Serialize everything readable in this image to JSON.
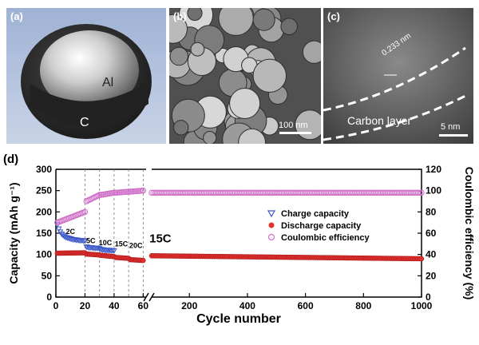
{
  "panels": {
    "a": {
      "label": "(a)",
      "core_label": "Al",
      "shell_label": "C"
    },
    "b": {
      "label": "(b)",
      "scale_text": "100 nm"
    },
    "c": {
      "label": "(c)",
      "lattice_text": "0.233 nm",
      "layer_text": "Carbon layer",
      "scale_text": "5 nm"
    },
    "d": {
      "label": "(d)"
    }
  },
  "chart_data": {
    "type": "scatter",
    "xlabel": "Cycle number",
    "ylabel": "Capacity (mAh g⁻¹)",
    "y2label": "Coulombic efficiency (%)",
    "xlim": [
      0,
      1000
    ],
    "ylim": [
      0,
      300
    ],
    "y2lim": [
      0,
      120
    ],
    "x_break": {
      "from": 62,
      "to": 70
    },
    "x_ticks": [
      "0",
      "20",
      "40",
      "60",
      "200",
      "400",
      "600",
      "800",
      "1000"
    ],
    "y_ticks": [
      "0",
      "50",
      "100",
      "150",
      "200",
      "250",
      "300"
    ],
    "y2_ticks": [
      "0",
      "20",
      "40",
      "60",
      "80",
      "100",
      "120"
    ],
    "rate_labels": [
      {
        "text": "2C",
        "x": 10,
        "y": 148
      },
      {
        "text": "5C",
        "x": 24,
        "y": 127
      },
      {
        "text": "10C",
        "x": 34,
        "y": 122
      },
      {
        "text": "15C",
        "x": 45,
        "y": 119
      },
      {
        "text": "20C",
        "x": 55,
        "y": 115
      }
    ],
    "big_label": {
      "text": "15C",
      "x": 100,
      "y": 128
    },
    "rate_boundaries": [
      20,
      30,
      40,
      50,
      60
    ],
    "series": [
      {
        "name": "Charge capacity",
        "marker": "triangle-down",
        "color": "#3a56c8",
        "axis": "left",
        "points": [
          [
            1,
            170
          ],
          [
            2,
            160
          ],
          [
            3,
            153
          ],
          [
            4,
            148
          ],
          [
            5,
            145
          ],
          [
            6,
            142
          ],
          [
            7,
            140
          ],
          [
            8,
            139
          ],
          [
            9,
            138
          ],
          [
            10,
            137
          ],
          [
            11,
            136
          ],
          [
            12,
            135
          ],
          [
            13,
            135
          ],
          [
            14,
            134
          ],
          [
            15,
            134
          ],
          [
            16,
            133
          ],
          [
            17,
            133
          ],
          [
            18,
            133
          ],
          [
            19,
            132
          ],
          [
            20,
            132
          ],
          [
            21,
            118
          ],
          [
            22,
            117
          ],
          [
            23,
            116
          ],
          [
            24,
            116
          ],
          [
            25,
            116
          ],
          [
            26,
            115
          ],
          [
            27,
            115
          ],
          [
            28,
            115
          ],
          [
            29,
            115
          ],
          [
            30,
            114
          ],
          [
            31,
            112
          ],
          [
            32,
            111
          ],
          [
            33,
            111
          ],
          [
            34,
            110
          ],
          [
            35,
            110
          ],
          [
            36,
            110
          ],
          [
            37,
            110
          ],
          [
            38,
            109
          ],
          [
            39,
            109
          ],
          [
            40,
            109
          ]
        ]
      },
      {
        "name": "Discharge capacity",
        "marker": "circle-filled",
        "color": "#e03030",
        "axis": "left",
        "points": "segments",
        "segments": [
          {
            "x_from": 1,
            "x_to": 20,
            "y_from": 103,
            "y_to": 104
          },
          {
            "x_from": 21,
            "x_to": 30,
            "y_from": 101,
            "y_to": 99
          },
          {
            "x_from": 31,
            "x_to": 40,
            "y_from": 98,
            "y_to": 95
          },
          {
            "x_from": 41,
            "x_to": 50,
            "y_from": 93,
            "y_to": 91
          },
          {
            "x_from": 51,
            "x_to": 60,
            "y_from": 88,
            "y_to": 86
          },
          {
            "x_from": 70,
            "x_to": 1000,
            "y_from": 97,
            "y_to": 90
          }
        ]
      },
      {
        "name": "Coulombic efficiency",
        "marker": "circle-open",
        "color": "#d070c8",
        "axis": "right",
        "segments": [
          {
            "x_from": 1,
            "x_to": 20,
            "y_from": 70,
            "y_to": 80
          },
          {
            "x_from": 21,
            "x_to": 30,
            "y_from": 90,
            "y_to": 96
          },
          {
            "x_from": 31,
            "x_to": 40,
            "y_from": 96,
            "y_to": 98
          },
          {
            "x_from": 41,
            "x_to": 50,
            "y_from": 98,
            "y_to": 99
          },
          {
            "x_from": 51,
            "x_to": 60,
            "y_from": 99,
            "y_to": 100
          },
          {
            "x_from": 70,
            "x_to": 1000,
            "y_from": 98,
            "y_to": 98
          }
        ]
      }
    ],
    "legend_position": "right-center",
    "grid": false
  }
}
